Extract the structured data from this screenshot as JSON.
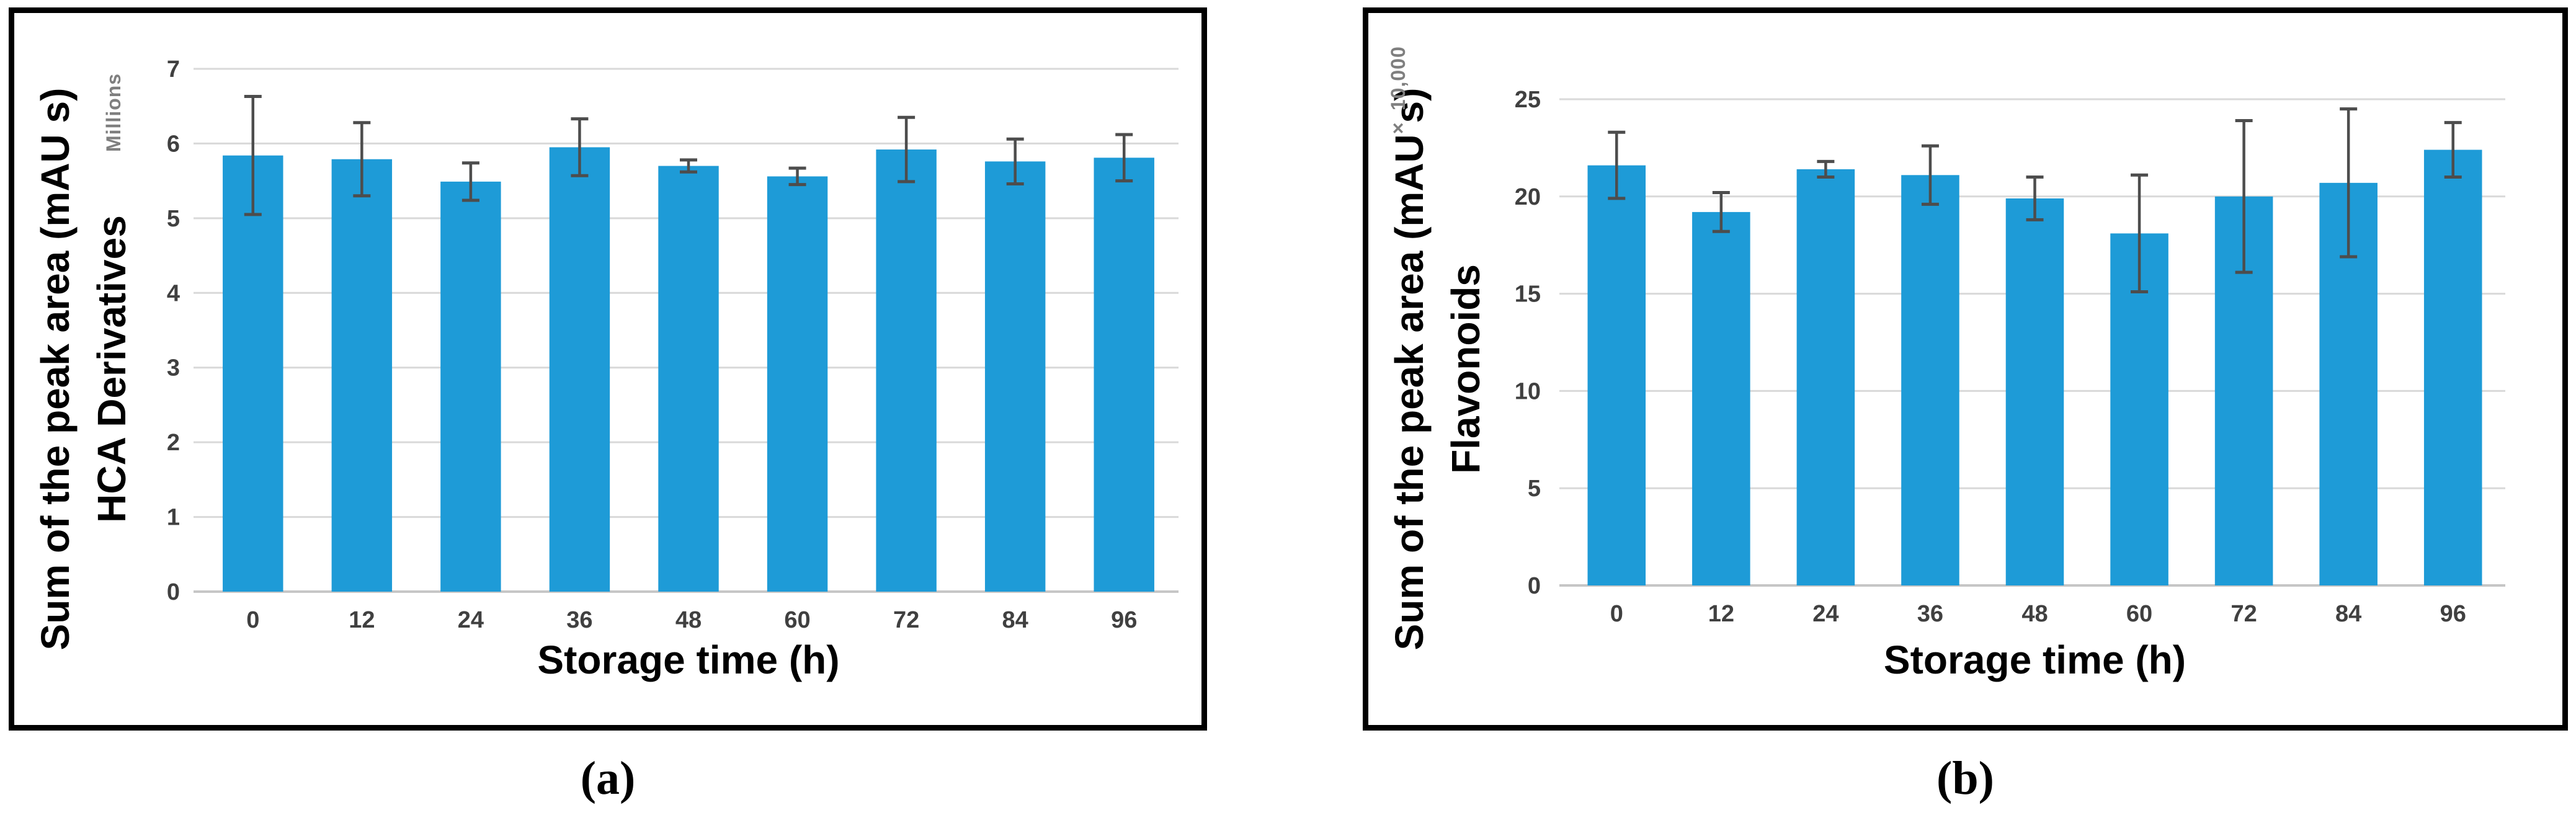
{
  "figure": {
    "background": "#FFFFFF",
    "panel_border_color": "#000000",
    "captions": {
      "a": "(a)",
      "b": "(b)"
    }
  },
  "chart_data": [
    {
      "id": "a",
      "type": "bar",
      "title": "",
      "xlabel": "Storage time (h)",
      "ylabel_line1": "Sum of the peak area (mAU s)",
      "ylabel_line2": "HCA Derivatives",
      "y_unit_label": "Millions",
      "categories": [
        "0",
        "12",
        "24",
        "36",
        "48",
        "60",
        "72",
        "84",
        "96"
      ],
      "values": [
        5.84,
        5.79,
        5.49,
        5.95,
        5.7,
        5.56,
        5.92,
        5.76,
        5.81
      ],
      "error_bars": [
        0.79,
        0.49,
        0.25,
        0.38,
        0.08,
        0.11,
        0.43,
        0.3,
        0.31
      ],
      "ylim": [
        0,
        7
      ],
      "yticks": [
        0,
        1,
        2,
        3,
        4,
        5,
        6,
        7
      ],
      "grid": true,
      "legend": "none",
      "colors": {
        "bar": "#1E9BD7",
        "grid": "#D9D9D9",
        "baseline": "#C6C6C6",
        "error": "#4D4D4D",
        "tick_text": "#404040",
        "unit_text": "#7F7F7F"
      }
    },
    {
      "id": "b",
      "type": "bar",
      "title": "",
      "xlabel": "Storage time (h)",
      "ylabel_line1": "Sum of the peak area (mAU s)",
      "ylabel_line2": "Flavonoids",
      "y_unit_label": "× 10,000",
      "categories": [
        "0",
        "12",
        "24",
        "36",
        "48",
        "60",
        "72",
        "84",
        "96"
      ],
      "values": [
        21.6,
        19.2,
        21.4,
        21.1,
        19.9,
        18.1,
        20.0,
        20.7,
        22.4
      ],
      "error_bars": [
        1.7,
        1.0,
        0.4,
        1.5,
        1.1,
        3.0,
        3.9,
        3.8,
        1.4
      ],
      "ylim": [
        0,
        25
      ],
      "yticks": [
        0,
        5,
        10,
        15,
        20,
        25
      ],
      "grid": true,
      "legend": "none",
      "colors": {
        "bar": "#1E9BD7",
        "grid": "#D9D9D9",
        "baseline": "#C6C6C6",
        "error": "#4D4D4D",
        "tick_text": "#404040",
        "unit_text": "#7F7F7F"
      }
    }
  ]
}
